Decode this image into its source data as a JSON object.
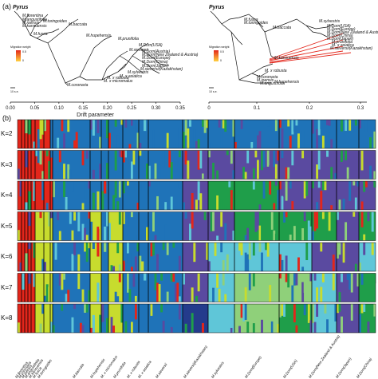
{
  "panel_a_label": "(a)",
  "panel_b_label": "(b)",
  "tree_left": {
    "root": "Pyrus",
    "legend_title": "Migration weight",
    "legend_max": "0.5",
    "legend_min": "0",
    "scale_label": "10 s.e.",
    "axis_title": "Drift parameter",
    "ticks": [
      "0.00",
      "0.05",
      "0.10",
      "0.15",
      "0.20",
      "0.25",
      "0.30",
      "0.35"
    ],
    "tips": [
      "M.florentina",
      "M.angustifolia",
      "M.ioensis",
      "M.kansuensis",
      "M.fusca",
      "M.toringoides",
      "M.baccata",
      "M.hupehensis",
      "M.prunifolia",
      "M.sieversii",
      "M.Dom(USA)",
      "M.Dom(Austria)",
      "M.Dom(New Zealand & Austria)",
      "M.Dom(Europe)",
      "M.Dom(China)",
      "M.Dom(Japan)",
      "M.sylvestris",
      "M. x asiatica",
      "M. x robusta",
      "M. x micromalus",
      "M.sieversii(Kazakhstan)",
      "M.coronaria"
    ]
  },
  "tree_right": {
    "root": "Pyrus",
    "legend_title": "Migration weight",
    "legend_max": "0.5",
    "legend_min": "0",
    "scale_label": "10 s.e.",
    "ticks": [
      "0",
      "0.1",
      "0.2",
      "0.3"
    ],
    "tips": [
      "M.fusca",
      "M.toringoides",
      "M.baccata",
      "M.sylvestris",
      "M.Dom(USA)",
      "M.Dom(Europe)",
      "M.Dom(New Zealand & Austria)",
      "M.Dom(China)",
      "M.Dom(Japan)",
      "M.prunifolia",
      "M. x asiatica",
      "M.sieversii(Kazakhstan)",
      "M.kansuensis",
      "M. x robusta",
      "M.coronaria",
      "M.ioensis",
      "M.angustifolia",
      "M.hupehensis"
    ]
  },
  "structure": {
    "k_labels": [
      "K=2",
      "K=3",
      "K=4",
      "K=5",
      "K=6",
      "K=7",
      "K=8"
    ],
    "populations": [
      "M.florentina",
      "M.coronaria",
      "M.ioensis",
      "M.angustifolia",
      "M.kansuensis",
      "M.fusca",
      "M.toringoides",
      "M.baccata",
      "M.hupehensis",
      "M. x micromalus",
      "M.prunifolia",
      "M. x robusta",
      "M. x asiatica",
      "M.sieversii",
      "M.sieversii(Kazakhstan)",
      "M.sylvestris",
      "M.Dom(Europe)",
      "M.Dom(USA)",
      "M.Dom(New Zealand & Austria)",
      "M.Dom(Japan)",
      "M.Dom(China)"
    ],
    "colors": {
      "red": "#e3261b",
      "blue": "#1f73b8",
      "purple": "#5a4aa0",
      "green": "#1f9e4a",
      "yellowgreen": "#c7dc2e",
      "cyan": "#5fc6d8",
      "lightgreen": "#8fd07a",
      "darkblue": "#243b8c"
    }
  }
}
